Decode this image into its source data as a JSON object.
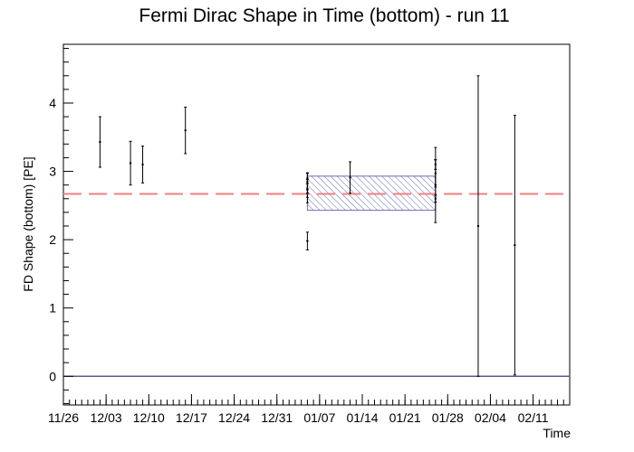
{
  "chart_data": {
    "type": "scatter",
    "title": "Fermi Dirac Shape in Time (bottom) - run 11",
    "xlabel": "Time",
    "ylabel": "FD Shape (bottom) [PE]",
    "x_axis_type": "date",
    "xlim": [
      "2019-11-26",
      "2020-02-17"
    ],
    "ylim": [
      -0.42,
      4.86
    ],
    "x_tick_labels": [
      "11/26",
      "12/03",
      "12/10",
      "12/17",
      "12/24",
      "12/31",
      "01/07",
      "01/14",
      "01/21",
      "01/28",
      "02/04",
      "02/11"
    ],
    "x_ticks": [
      "2019-11-26",
      "2019-12-03",
      "2019-12-10",
      "2019-12-17",
      "2019-12-24",
      "2019-12-31",
      "2020-01-07",
      "2020-01-14",
      "2020-01-21",
      "2020-01-28",
      "2020-02-04",
      "2020-02-11"
    ],
    "y_ticks": [
      0,
      1,
      2,
      3,
      4
    ],
    "grid": false,
    "points": [
      {
        "x": "2019-12-02",
        "y": 3.43,
        "err": 0.37
      },
      {
        "x": "2019-12-07",
        "y": 3.12,
        "err": 0.32
      },
      {
        "x": "2019-12-09",
        "y": 3.1,
        "err": 0.27
      },
      {
        "x": "2019-12-16",
        "y": 3.6,
        "err": 0.34
      },
      {
        "x": "2020-01-05",
        "y": 2.9,
        "err": 0.08
      },
      {
        "x": "2020-01-05",
        "y": 2.85,
        "err": 0.12
      },
      {
        "x": "2020-01-05",
        "y": 2.75,
        "err": 0.13
      },
      {
        "x": "2020-01-05",
        "y": 2.68,
        "err": 0.14
      },
      {
        "x": "2020-01-05",
        "y": 1.98,
        "err": 0.13
      },
      {
        "x": "2020-01-12",
        "y": 2.91,
        "err": 0.23
      },
      {
        "x": "2020-01-26",
        "y": 3.1,
        "err": 0.07
      },
      {
        "x": "2020-01-26",
        "y": 2.97,
        "err": 0.2
      },
      {
        "x": "2020-01-26",
        "y": 2.8,
        "err": 0.55
      },
      {
        "x": "2020-01-26",
        "y": 2.6,
        "err": 0.05
      },
      {
        "x": "2020-02-02",
        "y": 2.2,
        "err": 2.2
      },
      {
        "x": "2020-02-08",
        "y": 1.92,
        "err": 1.9
      }
    ],
    "mean_line": {
      "y": 2.67,
      "color": "#f08080"
    },
    "zero_line": {
      "y": 0,
      "color": "#5a5a99"
    },
    "band": {
      "x_start": "2020-01-05",
      "x_end": "2020-01-26",
      "y_low": 2.43,
      "y_high": 2.93,
      "color": "#6b6bb5"
    }
  }
}
